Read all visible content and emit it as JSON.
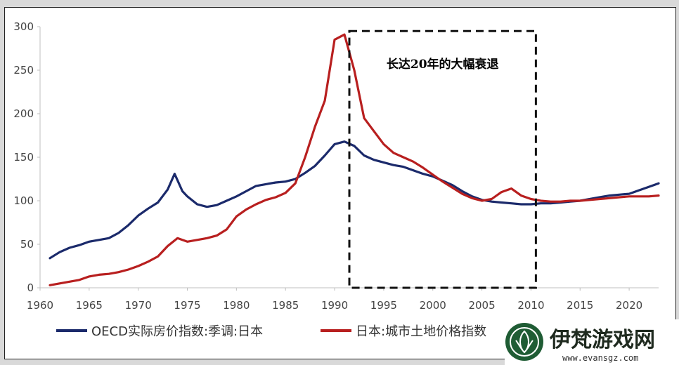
{
  "chart_data": {
    "type": "line",
    "xlim": [
      1960,
      2023
    ],
    "ylim": [
      0,
      300
    ],
    "x_ticks": [
      "1960",
      "1965",
      "1970",
      "1975",
      "1980",
      "1985",
      "1990",
      "1995",
      "2000",
      "2005",
      "2010",
      "2015",
      "2020"
    ],
    "y_ticks": [
      "0",
      "50",
      "100",
      "150",
      "200",
      "250",
      "300"
    ],
    "grid": false,
    "legend_position": "bottom",
    "annotation": {
      "text": "长达20年的大幅衰退",
      "x_range": [
        1991.5,
        2010.5
      ],
      "y_range": [
        0,
        295
      ],
      "style": "dashed-box"
    },
    "series": [
      {
        "name": "OECD实际房价指数:季调:日本",
        "color": "#1b2a6b",
        "points": [
          [
            1961,
            34
          ],
          [
            1962,
            41
          ],
          [
            1963,
            46
          ],
          [
            1964,
            49
          ],
          [
            1965,
            53
          ],
          [
            1966,
            55
          ],
          [
            1967,
            57
          ],
          [
            1968,
            63
          ],
          [
            1969,
            72
          ],
          [
            1970,
            83
          ],
          [
            1971,
            91
          ],
          [
            1972,
            98
          ],
          [
            1973,
            113
          ],
          [
            1973.7,
            131
          ],
          [
            1974.5,
            111
          ],
          [
            1975,
            105
          ],
          [
            1976,
            96
          ],
          [
            1977,
            93
          ],
          [
            1978,
            95
          ],
          [
            1979,
            100
          ],
          [
            1980,
            105
          ],
          [
            1981,
            111
          ],
          [
            1982,
            117
          ],
          [
            1983,
            119
          ],
          [
            1984,
            121
          ],
          [
            1985,
            122
          ],
          [
            1986,
            125
          ],
          [
            1987,
            132
          ],
          [
            1988,
            140
          ],
          [
            1989,
            152
          ],
          [
            1990,
            165
          ],
          [
            1991,
            168
          ],
          [
            1992,
            163
          ],
          [
            1993,
            152
          ],
          [
            1994,
            147
          ],
          [
            1995,
            144
          ],
          [
            1996,
            141
          ],
          [
            1997,
            139
          ],
          [
            1998,
            135
          ],
          [
            1999,
            131
          ],
          [
            2000,
            128
          ],
          [
            2001,
            123
          ],
          [
            2002,
            118
          ],
          [
            2003,
            111
          ],
          [
            2004,
            105
          ],
          [
            2005,
            101
          ],
          [
            2006,
            99
          ],
          [
            2007,
            98
          ],
          [
            2008,
            97
          ],
          [
            2009,
            96
          ],
          [
            2010,
            96
          ],
          [
            2011,
            97
          ],
          [
            2012,
            97
          ],
          [
            2013,
            98
          ],
          [
            2014,
            99
          ],
          [
            2015,
            100
          ],
          [
            2016,
            102
          ],
          [
            2017,
            104
          ],
          [
            2018,
            106
          ],
          [
            2019,
            107
          ],
          [
            2020,
            108
          ],
          [
            2021,
            112
          ],
          [
            2022,
            116
          ],
          [
            2023,
            120
          ]
        ]
      },
      {
        "name": "日本:城市土地价格指数",
        "color": "#b81f1f",
        "points": [
          [
            1961,
            3
          ],
          [
            1962,
            5
          ],
          [
            1963,
            7
          ],
          [
            1964,
            9
          ],
          [
            1965,
            13
          ],
          [
            1966,
            15
          ],
          [
            1967,
            16
          ],
          [
            1968,
            18
          ],
          [
            1969,
            21
          ],
          [
            1970,
            25
          ],
          [
            1971,
            30
          ],
          [
            1972,
            36
          ],
          [
            1973,
            48
          ],
          [
            1974,
            57
          ],
          [
            1975,
            53
          ],
          [
            1976,
            55
          ],
          [
            1977,
            57
          ],
          [
            1978,
            60
          ],
          [
            1979,
            67
          ],
          [
            1980,
            82
          ],
          [
            1981,
            90
          ],
          [
            1982,
            96
          ],
          [
            1983,
            101
          ],
          [
            1984,
            104
          ],
          [
            1985,
            109
          ],
          [
            1986,
            120
          ],
          [
            1987,
            150
          ],
          [
            1988,
            185
          ],
          [
            1989,
            215
          ],
          [
            1990,
            285
          ],
          [
            1991,
            291
          ],
          [
            1992,
            250
          ],
          [
            1993,
            195
          ],
          [
            1994,
            180
          ],
          [
            1995,
            165
          ],
          [
            1996,
            155
          ],
          [
            1997,
            150
          ],
          [
            1998,
            145
          ],
          [
            1999,
            138
          ],
          [
            2000,
            130
          ],
          [
            2001,
            122
          ],
          [
            2002,
            115
          ],
          [
            2003,
            108
          ],
          [
            2004,
            103
          ],
          [
            2005,
            100
          ],
          [
            2006,
            102
          ],
          [
            2007,
            110
          ],
          [
            2008,
            114
          ],
          [
            2009,
            106
          ],
          [
            2010,
            102
          ],
          [
            2011,
            100
          ],
          [
            2012,
            99
          ],
          [
            2013,
            99
          ],
          [
            2014,
            100
          ],
          [
            2015,
            100
          ],
          [
            2016,
            101
          ],
          [
            2017,
            102
          ],
          [
            2018,
            103
          ],
          [
            2019,
            104
          ],
          [
            2020,
            105
          ],
          [
            2021,
            105
          ],
          [
            2022,
            105
          ],
          [
            2023,
            106
          ]
        ]
      }
    ]
  },
  "watermark": {
    "title": "伊梵游戏网",
    "url": "www.evansgz.com",
    "logo_color": "#1f5c34"
  }
}
